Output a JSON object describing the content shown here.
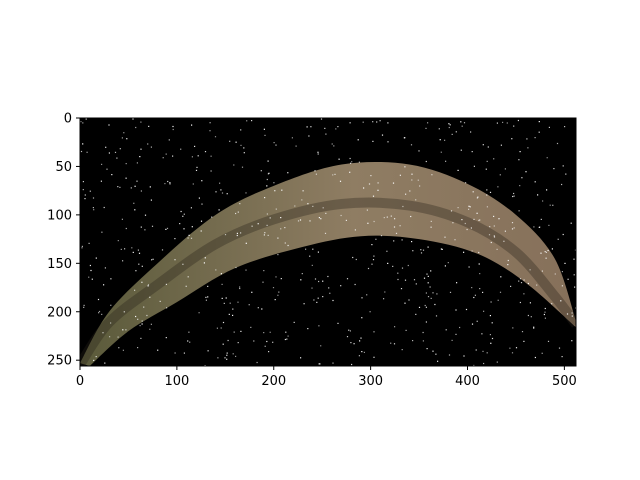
{
  "figure": {
    "background": "#ffffff"
  },
  "chart_data": {
    "type": "image",
    "image_width": 512,
    "image_height": 256,
    "origin": "upper",
    "xlim": [
      0,
      512
    ],
    "ylim": [
      256,
      0
    ],
    "xticks": [
      0,
      100,
      200,
      300,
      400,
      500
    ],
    "yticks": [
      0,
      50,
      100,
      150,
      200,
      250
    ],
    "xtick_labels": [
      "0",
      "100",
      "200",
      "300",
      "400",
      "500"
    ],
    "ytick_labels": [
      "0",
      "50",
      "100",
      "150",
      "200",
      "250"
    ],
    "grid": false,
    "description_colors": {
      "sky": "#000000",
      "stars": "#ffffff",
      "band_left": "#5a5a3a",
      "band_center": "#8f7d63",
      "band_right": "#86705a"
    },
    "arc": {
      "outer_edge": [
        [
          0,
          253
        ],
        [
          30,
          200
        ],
        [
          80,
          150
        ],
        [
          140,
          100
        ],
        [
          200,
          70
        ],
        [
          270,
          48
        ],
        [
          340,
          48
        ],
        [
          400,
          68
        ],
        [
          450,
          100
        ],
        [
          490,
          145
        ],
        [
          512,
          210
        ]
      ],
      "inner_edge": [
        [
          10,
          256
        ],
        [
          50,
          220
        ],
        [
          100,
          190
        ],
        [
          160,
          155
        ],
        [
          230,
          133
        ],
        [
          290,
          122
        ],
        [
          350,
          125
        ],
        [
          410,
          140
        ],
        [
          460,
          170
        ],
        [
          512,
          216
        ]
      ]
    },
    "title": "",
    "xlabel": "",
    "ylabel": ""
  }
}
